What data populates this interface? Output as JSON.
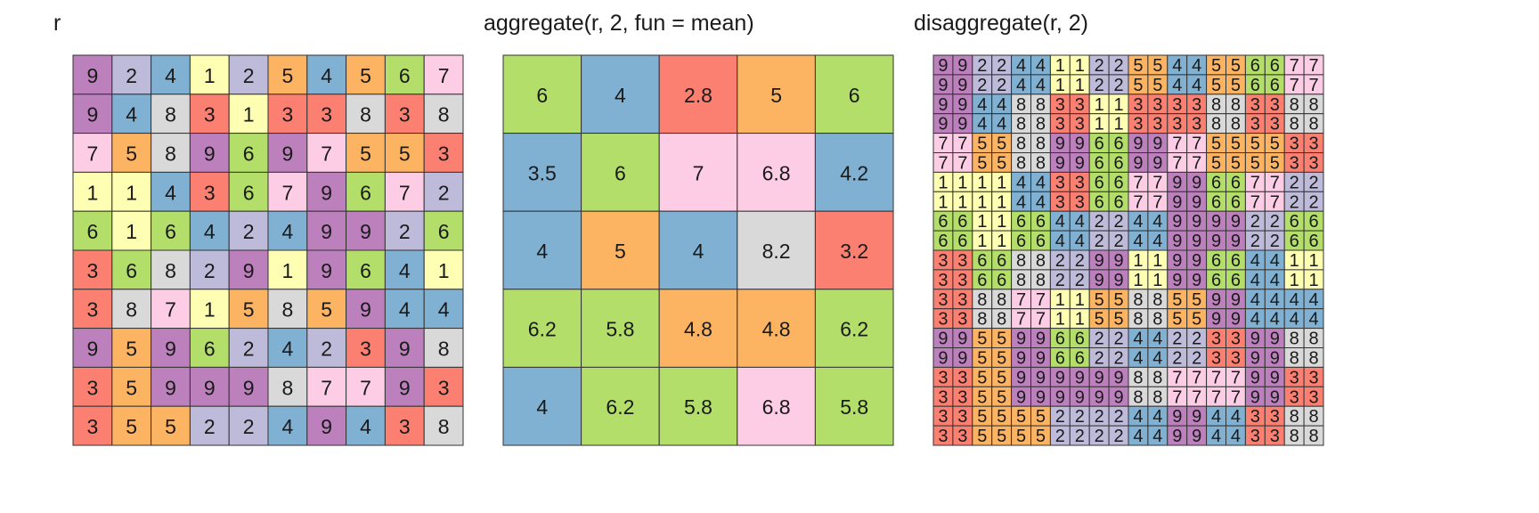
{
  "colors": [
    "#ffffb3",
    "#bebada",
    "#fb8072",
    "#80b1d3",
    "#fdb462",
    "#b3de69",
    "#fccde5",
    "#d9d9d9",
    "#bc80bd"
  ],
  "panels": [
    {
      "title": "r",
      "grid": [
        [
          9,
          2,
          4,
          1,
          2,
          5,
          4,
          5,
          6,
          7
        ],
        [
          9,
          4,
          8,
          3,
          1,
          3,
          3,
          8,
          3,
          8
        ],
        [
          7,
          5,
          8,
          9,
          6,
          9,
          7,
          5,
          5,
          3
        ],
        [
          1,
          1,
          4,
          3,
          6,
          7,
          9,
          6,
          7,
          2
        ],
        [
          6,
          1,
          6,
          4,
          2,
          4,
          9,
          9,
          2,
          6
        ],
        [
          3,
          6,
          8,
          2,
          9,
          1,
          9,
          6,
          4,
          1
        ],
        [
          3,
          8,
          7,
          1,
          5,
          8,
          5,
          9,
          4,
          4
        ],
        [
          9,
          5,
          9,
          6,
          2,
          4,
          2,
          3,
          9,
          8
        ],
        [
          3,
          5,
          9,
          9,
          9,
          8,
          7,
          7,
          9,
          3
        ],
        [
          3,
          5,
          5,
          2,
          2,
          4,
          9,
          4,
          3,
          8
        ]
      ]
    },
    {
      "title": "aggregate(r, 2, fun = mean)",
      "grid": [
        [
          6,
          4,
          2.8,
          5,
          6
        ],
        [
          3.5,
          6,
          7,
          6.8,
          4.2
        ],
        [
          4,
          5,
          4,
          8.2,
          3.2
        ],
        [
          6.2,
          5.8,
          4.8,
          4.8,
          6.2
        ],
        [
          4,
          6.2,
          5.8,
          6.8,
          5.8
        ]
      ]
    },
    {
      "title": "disaggregate(r, 2)",
      "grid": [
        [
          9,
          9,
          2,
          2,
          4,
          4,
          1,
          1,
          2,
          2,
          5,
          5,
          4,
          4,
          5,
          5,
          6,
          6,
          7,
          7
        ],
        [
          9,
          9,
          2,
          2,
          4,
          4,
          1,
          1,
          2,
          2,
          5,
          5,
          4,
          4,
          5,
          5,
          6,
          6,
          7,
          7
        ],
        [
          9,
          9,
          4,
          4,
          8,
          8,
          3,
          3,
          1,
          1,
          3,
          3,
          3,
          3,
          8,
          8,
          3,
          3,
          8,
          8
        ],
        [
          9,
          9,
          4,
          4,
          8,
          8,
          3,
          3,
          1,
          1,
          3,
          3,
          3,
          3,
          8,
          8,
          3,
          3,
          8,
          8
        ],
        [
          7,
          7,
          5,
          5,
          8,
          8,
          9,
          9,
          6,
          6,
          9,
          9,
          7,
          7,
          5,
          5,
          5,
          5,
          3,
          3
        ],
        [
          7,
          7,
          5,
          5,
          8,
          8,
          9,
          9,
          6,
          6,
          9,
          9,
          7,
          7,
          5,
          5,
          5,
          5,
          3,
          3
        ],
        [
          1,
          1,
          1,
          1,
          4,
          4,
          3,
          3,
          6,
          6,
          7,
          7,
          9,
          9,
          6,
          6,
          7,
          7,
          2,
          2
        ],
        [
          1,
          1,
          1,
          1,
          4,
          4,
          3,
          3,
          6,
          6,
          7,
          7,
          9,
          9,
          6,
          6,
          7,
          7,
          2,
          2
        ],
        [
          6,
          6,
          1,
          1,
          6,
          6,
          4,
          4,
          2,
          2,
          4,
          4,
          9,
          9,
          9,
          9,
          2,
          2,
          6,
          6
        ],
        [
          6,
          6,
          1,
          1,
          6,
          6,
          4,
          4,
          2,
          2,
          4,
          4,
          9,
          9,
          9,
          9,
          2,
          2,
          6,
          6
        ],
        [
          3,
          3,
          6,
          6,
          8,
          8,
          2,
          2,
          9,
          9,
          1,
          1,
          9,
          9,
          6,
          6,
          4,
          4,
          1,
          1
        ],
        [
          3,
          3,
          6,
          6,
          8,
          8,
          2,
          2,
          9,
          9,
          1,
          1,
          9,
          9,
          6,
          6,
          4,
          4,
          1,
          1
        ],
        [
          3,
          3,
          8,
          8,
          7,
          7,
          1,
          1,
          5,
          5,
          8,
          8,
          5,
          5,
          9,
          9,
          4,
          4,
          4,
          4
        ],
        [
          3,
          3,
          8,
          8,
          7,
          7,
          1,
          1,
          5,
          5,
          8,
          8,
          5,
          5,
          9,
          9,
          4,
          4,
          4,
          4
        ],
        [
          9,
          9,
          5,
          5,
          9,
          9,
          6,
          6,
          2,
          2,
          4,
          4,
          2,
          2,
          3,
          3,
          9,
          9,
          8,
          8
        ],
        [
          9,
          9,
          5,
          5,
          9,
          9,
          6,
          6,
          2,
          2,
          4,
          4,
          2,
          2,
          3,
          3,
          9,
          9,
          8,
          8
        ],
        [
          3,
          3,
          5,
          5,
          9,
          9,
          9,
          9,
          9,
          9,
          8,
          8,
          7,
          7,
          7,
          7,
          9,
          9,
          3,
          3
        ],
        [
          3,
          3,
          5,
          5,
          9,
          9,
          9,
          9,
          9,
          9,
          8,
          8,
          7,
          7,
          7,
          7,
          9,
          9,
          3,
          3
        ],
        [
          3,
          3,
          5,
          5,
          5,
          5,
          2,
          2,
          2,
          2,
          4,
          4,
          9,
          9,
          4,
          4,
          3,
          3,
          8,
          8
        ],
        [
          3,
          3,
          5,
          5,
          5,
          5,
          2,
          2,
          2,
          2,
          4,
          4,
          9,
          9,
          4,
          4,
          3,
          3,
          8,
          8
        ]
      ]
    }
  ]
}
